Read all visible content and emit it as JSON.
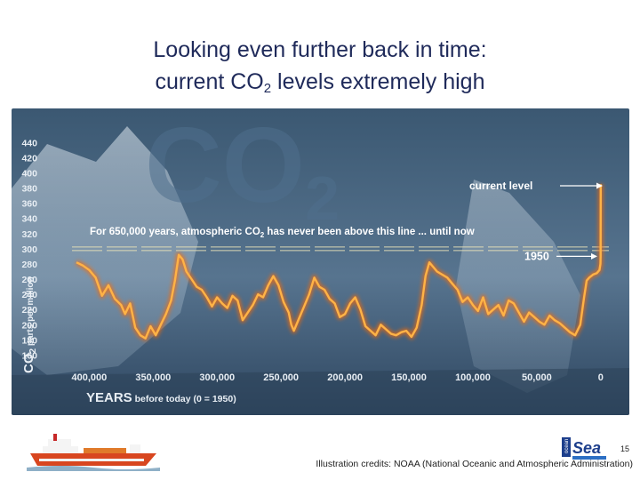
{
  "slide": {
    "title_line1": "Looking even further back in time:",
    "title_line2_prefix": "current CO",
    "title_line2_sub": "2",
    "title_line2_suffix": " levels extremely high",
    "credit": "Illustration credits: NOAA (National Oceanic and Atmospheric Administration)",
    "page_number": "15",
    "logo_text": "Sea",
    "logo_small": "ocean"
  },
  "chart_data": {
    "type": "line",
    "title": "",
    "background_watermark": "CO2",
    "ylabel_prefix": "CO",
    "ylabel_sub": "2",
    "ylabel_rest": " parts per million",
    "xlabel_bold": "YEARS",
    "xlabel_rest": " before today (0 = 1950)",
    "ylim": [
      150,
      445
    ],
    "xlim": [
      410000,
      -5000
    ],
    "x_reversed": true,
    "y_ticks": [
      440,
      420,
      400,
      380,
      360,
      340,
      320,
      300,
      280,
      260,
      240,
      220,
      200,
      180,
      160
    ],
    "x_ticks": [
      400000,
      350000,
      300000,
      250000,
      200000,
      150000,
      100000,
      50000,
      0
    ],
    "x_tick_labels": [
      "400,000",
      "350,000",
      "300,000",
      "250,000",
      "200,000",
      "150,000",
      "100,000",
      "50,000",
      "0"
    ],
    "threshold_ppm": 300,
    "annotations": {
      "threshold_prefix": "For 650,000 years, atmospheric CO",
      "threshold_sub": "2",
      "threshold_suffix": " has never been above this line ... until now",
      "current_label": "current level",
      "year_1950_label": "1950"
    },
    "colors": {
      "line": "#ffb347",
      "glow": "#ff6a00",
      "threshold": "#e9e2b8",
      "background_top": "#3b5872",
      "background_bottom": "#6d8aa3"
    },
    "series": [
      {
        "x": [
          410000,
          405000,
          400000,
          395000,
          390000,
          385000,
          380000,
          375000,
          372000,
          368000,
          364000,
          360000,
          356000,
          352000,
          348000,
          344000,
          340000,
          336000,
          333000,
          330000,
          327000,
          324000,
          320000,
          316000,
          312000,
          308000,
          304000,
          300000,
          296000,
          292000,
          288000,
          284000,
          280000,
          276000,
          272000,
          268000,
          264000,
          260000,
          256000,
          252000,
          248000,
          244000,
          242000,
          240000,
          236000,
          232000,
          228000,
          224000,
          220000,
          216000,
          212000,
          208000,
          204000,
          200000,
          196000,
          192000,
          188000,
          184000,
          180000,
          176000,
          172000,
          168000,
          164000,
          160000,
          156000,
          152000,
          148000,
          144000,
          140000,
          137000,
          134000,
          131000,
          128000,
          124000,
          120000,
          116000,
          112000,
          108000,
          104000,
          100000,
          96000,
          92000,
          88000,
          84000,
          80000,
          76000,
          72000,
          68000,
          64000,
          60000,
          56000,
          52000,
          48000,
          44000,
          40000,
          36000,
          32000,
          28000,
          24000,
          20000,
          16000,
          13000,
          11000,
          9000,
          6000,
          3000,
          1000,
          200,
          100,
          50,
          0
        ],
        "y": [
          282,
          278,
          272,
          262,
          238,
          252,
          234,
          226,
          214,
          228,
          196,
          186,
          182,
          198,
          186,
          200,
          214,
          232,
          258,
          292,
          286,
          270,
          260,
          250,
          246,
          236,
          224,
          236,
          228,
          222,
          238,
          232,
          206,
          216,
          226,
          240,
          236,
          252,
          264,
          252,
          230,
          216,
          200,
          192,
          208,
          224,
          240,
          262,
          250,
          246,
          234,
          228,
          210,
          214,
          228,
          236,
          220,
          198,
          192,
          186,
          200,
          194,
          188,
          186,
          190,
          192,
          184,
          196,
          226,
          264,
          282,
          276,
          270,
          266,
          262,
          254,
          246,
          230,
          236,
          226,
          218,
          236,
          214,
          220,
          226,
          212,
          232,
          228,
          216,
          204,
          216,
          210,
          204,
          200,
          212,
          206,
          202,
          196,
          190,
          186,
          200,
          236,
          258,
          262,
          266,
          268,
          272,
          280,
          290,
          310,
          385
        ]
      }
    ]
  }
}
